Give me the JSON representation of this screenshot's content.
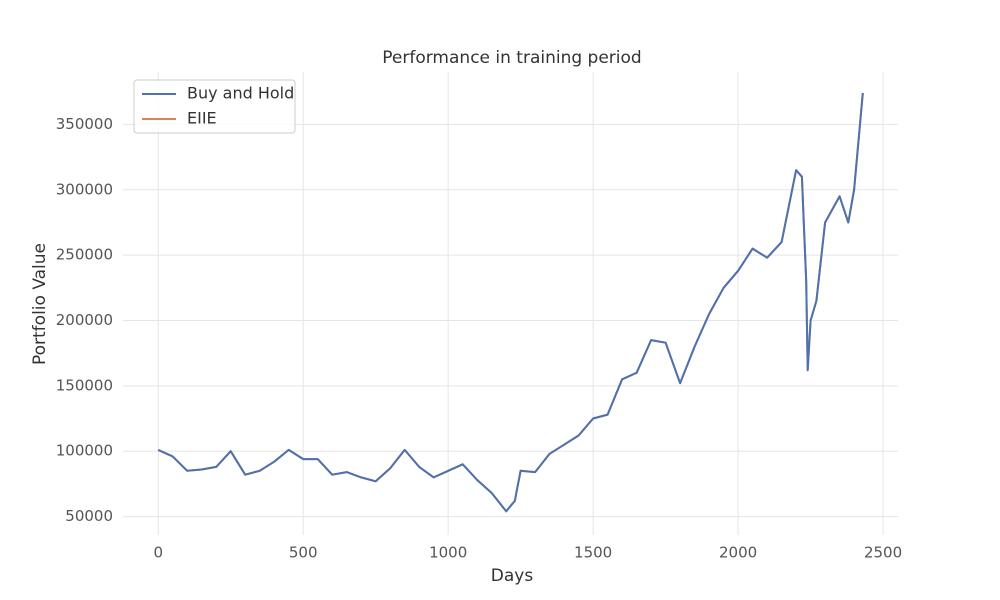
{
  "chart_data": {
    "type": "line",
    "title": "Performance in training period",
    "xlabel": "Days",
    "ylabel": "Portfolio Value",
    "x": [
      0,
      50,
      100,
      150,
      200,
      250,
      300,
      350,
      400,
      450,
      500,
      550,
      600,
      650,
      700,
      750,
      800,
      850,
      900,
      950,
      1000,
      1050,
      1100,
      1150,
      1200,
      1230,
      1250,
      1300,
      1350,
      1400,
      1450,
      1500,
      1550,
      1600,
      1650,
      1700,
      1750,
      1800,
      1850,
      1900,
      1950,
      2000,
      2050,
      2100,
      2150,
      2200,
      2220,
      2235,
      2240,
      2250,
      2270,
      2300,
      2350,
      2380,
      2400,
      2430
    ],
    "series": [
      {
        "name": "Buy and Hold",
        "color": "#4c72b0",
        "values": [
          101000,
          96000,
          85000,
          86000,
          88000,
          100000,
          82000,
          85000,
          92000,
          101000,
          94000,
          94000,
          82000,
          84000,
          80000,
          77000,
          87000,
          101000,
          88000,
          80000,
          85000,
          90000,
          78000,
          68000,
          54000,
          62000,
          85000,
          84000,
          98000,
          105000,
          112000,
          125000,
          128000,
          155000,
          160000,
          185000,
          183000,
          152000,
          180000,
          205000,
          225000,
          238000,
          255000,
          248000,
          260000,
          315000,
          310000,
          230000,
          162000,
          200000,
          215000,
          275000,
          295000,
          275000,
          300000,
          374000
        ]
      },
      {
        "name": "EIIE",
        "color": "#dd8452",
        "values": [
          101000,
          96000,
          85000,
          86000,
          88000,
          100000,
          82000,
          85000,
          92000,
          101000,
          94000,
          94000,
          82000,
          84000,
          80000,
          77000,
          87000,
          101000,
          88000,
          80000,
          85000,
          90000,
          78000,
          68000,
          54000,
          62000,
          85000,
          84000,
          98000,
          105000,
          112000,
          125000,
          128000,
          155000,
          160000,
          185000,
          183000,
          152000,
          180000,
          205000,
          225000,
          238000,
          255000,
          248000,
          260000,
          315000,
          310000,
          230000,
          162000,
          200000,
          215000,
          275000,
          295000,
          275000,
          300000,
          374000
        ]
      }
    ],
    "xlim": [
      -121.5,
      2551.5
    ],
    "xticks": [
      0,
      500,
      1000,
      1500,
      2000,
      2500
    ],
    "ylim": [
      35900,
      390100
    ],
    "yticks": [
      50000,
      100000,
      150000,
      200000,
      250000,
      300000,
      350000
    ],
    "grid": true,
    "legend": "upper left"
  }
}
